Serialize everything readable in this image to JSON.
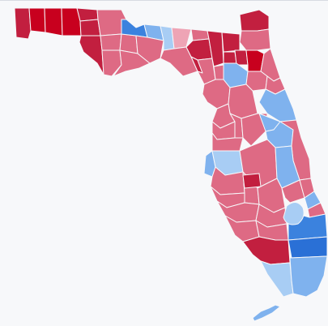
{
  "map": {
    "state": "Florida",
    "palette": {
      "strong_red": "#c8001e",
      "red": "#c21f3f",
      "medium_red": "#de6a84",
      "light_red": "#eea4b5",
      "light_blue": "#a8cdf4",
      "medium_blue": "#7fb2ee",
      "blue": "#3b82de",
      "strong_blue": "#2a70d6",
      "border": "#f7f8fa",
      "background": "#f7f8fa"
    },
    "regions": [
      {
        "id": "escambia",
        "category": "red"
      },
      {
        "id": "santa-rosa",
        "category": "strong_red"
      },
      {
        "id": "okaloosa",
        "category": "strong_red"
      },
      {
        "id": "walton",
        "category": "strong_red"
      },
      {
        "id": "holmes",
        "category": "red"
      },
      {
        "id": "washington",
        "category": "red"
      },
      {
        "id": "bay",
        "category": "red"
      },
      {
        "id": "jackson",
        "category": "medium_red"
      },
      {
        "id": "calhoun",
        "category": "medium_red"
      },
      {
        "id": "gulf",
        "category": "medium_red"
      },
      {
        "id": "liberty",
        "category": "medium_red"
      },
      {
        "id": "franklin",
        "category": "medium_red"
      },
      {
        "id": "gadsden",
        "category": "blue"
      },
      {
        "id": "leon",
        "category": "medium_blue"
      },
      {
        "id": "wakulla",
        "category": "medium_red"
      },
      {
        "id": "jefferson",
        "category": "light_blue"
      },
      {
        "id": "madison",
        "category": "light_red"
      },
      {
        "id": "taylor",
        "category": "medium_red"
      },
      {
        "id": "hamilton",
        "category": "medium_red"
      },
      {
        "id": "suwannee",
        "category": "red"
      },
      {
        "id": "lafayette",
        "category": "red"
      },
      {
        "id": "dixie",
        "category": "medium_red"
      },
      {
        "id": "columbia",
        "category": "red"
      },
      {
        "id": "baker",
        "category": "red"
      },
      {
        "id": "union",
        "category": "red"
      },
      {
        "id": "bradford",
        "category": "red"
      },
      {
        "id": "nassau",
        "category": "red"
      },
      {
        "id": "duval",
        "category": "medium_red"
      },
      {
        "id": "clay",
        "category": "strong_red"
      },
      {
        "id": "st-johns",
        "category": "medium_red"
      },
      {
        "id": "gilchrist",
        "category": "medium_red"
      },
      {
        "id": "levy",
        "category": "medium_red"
      },
      {
        "id": "alachua",
        "category": "medium_blue"
      },
      {
        "id": "putnam",
        "category": "medium_red"
      },
      {
        "id": "flagler",
        "category": "medium_red"
      },
      {
        "id": "marion",
        "category": "medium_red"
      },
      {
        "id": "volusia",
        "category": "medium_blue"
      },
      {
        "id": "citrus",
        "category": "medium_red"
      },
      {
        "id": "sumter",
        "category": "medium_red"
      },
      {
        "id": "lake",
        "category": "medium_red"
      },
      {
        "id": "seminole",
        "category": "medium_blue"
      },
      {
        "id": "hernando",
        "category": "medium_red"
      },
      {
        "id": "pasco",
        "category": "medium_red"
      },
      {
        "id": "orange",
        "category": "medium_blue"
      },
      {
        "id": "brevard",
        "category": "medium_red"
      },
      {
        "id": "pinellas",
        "category": "medium_blue"
      },
      {
        "id": "hillsborough",
        "category": "light_blue"
      },
      {
        "id": "polk",
        "category": "medium_red"
      },
      {
        "id": "osceola",
        "category": "medium_blue"
      },
      {
        "id": "manatee",
        "category": "medium_red"
      },
      {
        "id": "hardee",
        "category": "medium_red"
      },
      {
        "id": "desoto",
        "category": "red"
      },
      {
        "id": "highlands",
        "category": "medium_red"
      },
      {
        "id": "okeechobee",
        "category": "medium_red"
      },
      {
        "id": "indian-river",
        "category": "medium_red"
      },
      {
        "id": "st-lucie",
        "category": "medium_blue"
      },
      {
        "id": "sarasota",
        "category": "medium_red"
      },
      {
        "id": "charlotte",
        "category": "medium_red"
      },
      {
        "id": "glades",
        "category": "medium_red"
      },
      {
        "id": "martin",
        "category": "medium_red"
      },
      {
        "id": "lee",
        "category": "medium_red"
      },
      {
        "id": "hendry",
        "category": "medium_red"
      },
      {
        "id": "palm-beach",
        "category": "blue"
      },
      {
        "id": "collier",
        "category": "red"
      },
      {
        "id": "broward",
        "category": "strong_blue"
      },
      {
        "id": "monroe",
        "category": "light_blue"
      },
      {
        "id": "miami-dade",
        "category": "medium_blue"
      },
      {
        "id": "lake-okeechobee",
        "category": "light_blue"
      },
      {
        "id": "florida-keys",
        "category": "medium_blue"
      }
    ]
  }
}
